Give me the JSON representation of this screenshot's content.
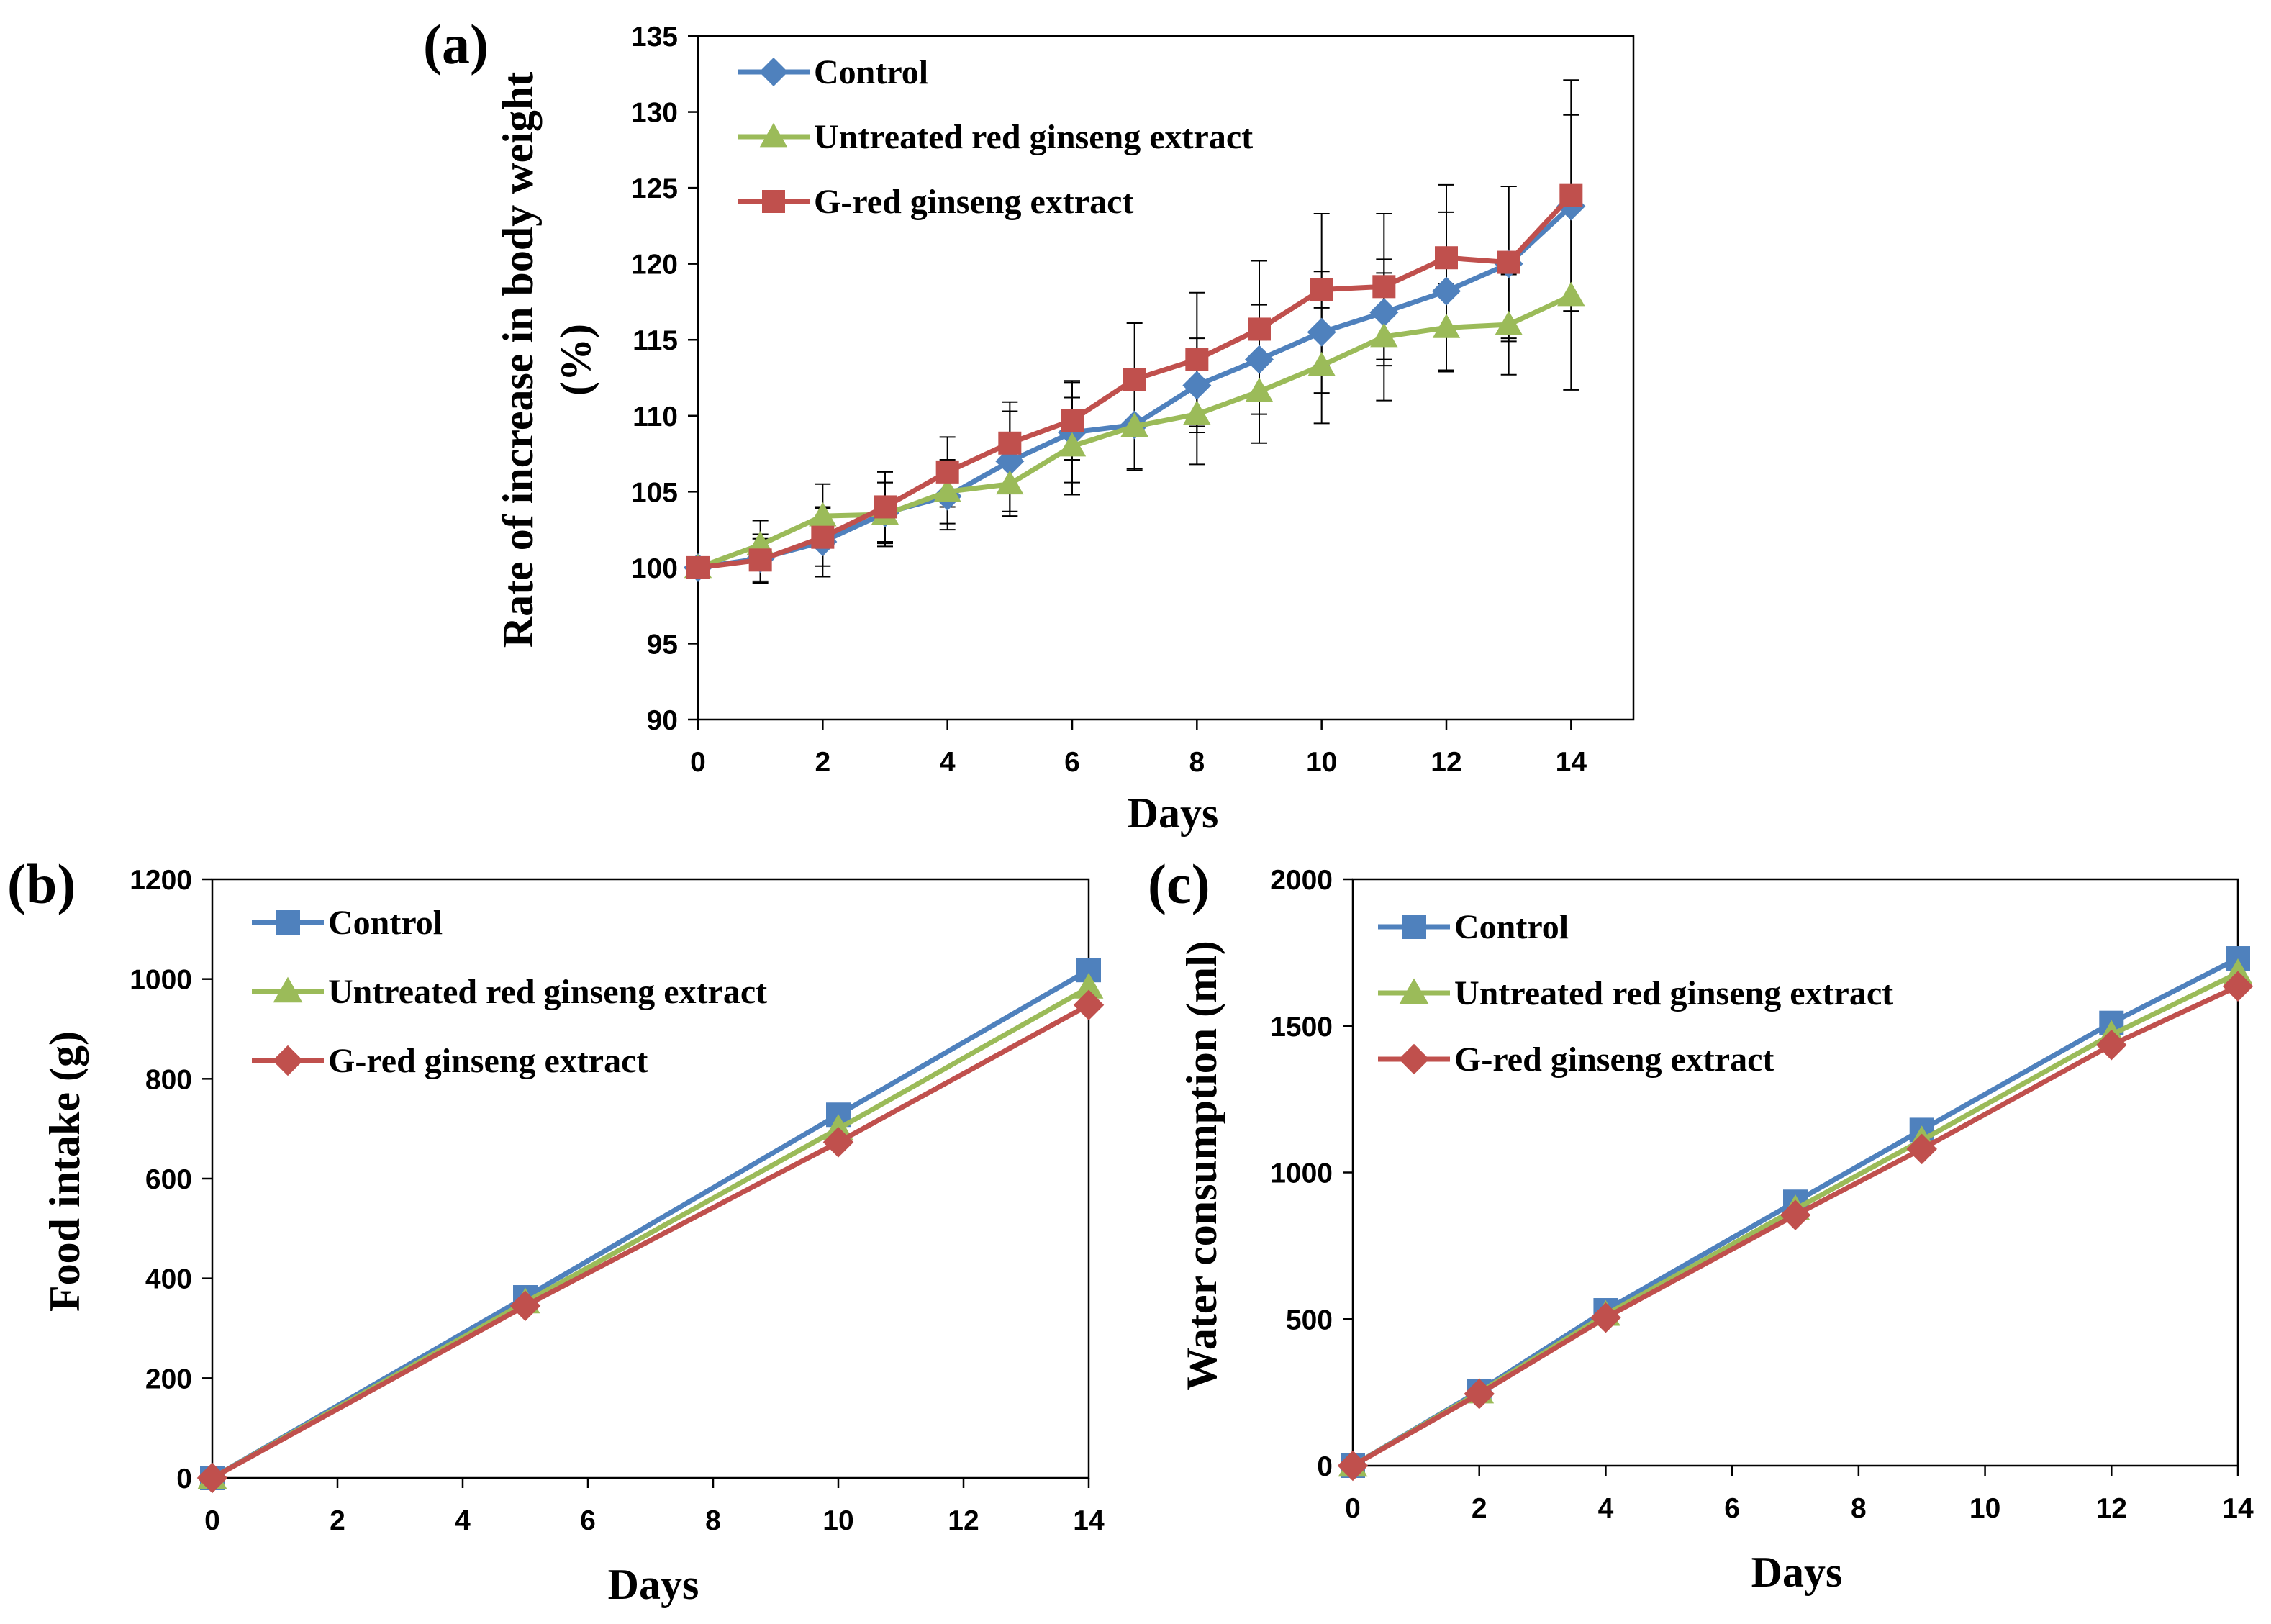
{
  "colors": {
    "control": "#4F81BD",
    "untreated": "#9BBB59",
    "gred": "#C0504D"
  },
  "chart_data": [
    {
      "panel": "(a)",
      "type": "line",
      "xlabel": "Days",
      "ylabel_line1": "Rate of increase in body weight",
      "ylabel_line2": "(%)",
      "xlim": [
        0,
        15
      ],
      "ylim": [
        90,
        135
      ],
      "xticks": [
        0,
        2,
        4,
        6,
        8,
        10,
        12,
        14
      ],
      "yticks": [
        90,
        95,
        100,
        105,
        110,
        115,
        120,
        125,
        130,
        135
      ],
      "grid": false,
      "legend_position": "top-left",
      "x": [
        0,
        1,
        2,
        3,
        4,
        5,
        6,
        7,
        8,
        9,
        10,
        11,
        12,
        13,
        14
      ],
      "series": [
        {
          "name": "Control",
          "marker": "diamond",
          "color": "#4F81BD",
          "values": [
            100,
            100.6,
            101.7,
            103.6,
            104.7,
            107.0,
            108.9,
            109.4,
            112.0,
            113.7,
            115.5,
            116.8,
            118.2,
            120.0,
            123.8
          ],
          "errors": [
            0,
            1.6,
            2.3,
            2.0,
            2.2,
            3.3,
            3.3,
            3.0,
            3.1,
            3.6,
            4.0,
            3.5,
            5.2,
            5.1,
            6.0
          ]
        },
        {
          "name": "Untreated red ginseng extract",
          "marker": "triangle",
          "color": "#9BBB59",
          "values": [
            100,
            101.5,
            103.4,
            103.5,
            105.0,
            105.5,
            108.0,
            109.3,
            110.1,
            111.6,
            113.3,
            115.2,
            115.8,
            116.0,
            117.9
          ],
          "errors": [
            0,
            1.6,
            2.1,
            2.1,
            2.1,
            2.1,
            3.2,
            2.8,
            3.3,
            3.4,
            3.8,
            4.2,
            2.9,
            3.3,
            6.2
          ]
        },
        {
          "name": "G-red ginseng extract",
          "marker": "square",
          "color": "#C0504D",
          "values": [
            100,
            100.5,
            102.0,
            104.0,
            106.3,
            108.2,
            109.7,
            112.4,
            113.7,
            115.7,
            118.3,
            118.5,
            120.4,
            120.1,
            124.5
          ],
          "errors": [
            0,
            1.4,
            1.9,
            2.3,
            2.3,
            2.7,
            2.6,
            3.7,
            4.4,
            4.5,
            5.0,
            4.8,
            4.8,
            5.0,
            7.6
          ]
        }
      ]
    },
    {
      "panel": "(b)",
      "type": "line",
      "xlabel": "Days",
      "ylabel": "Food intake (g)",
      "xlim": [
        0,
        14
      ],
      "ylim": [
        0,
        1200
      ],
      "xticks": [
        0,
        2,
        4,
        6,
        8,
        10,
        12,
        14
      ],
      "yticks": [
        0,
        200,
        400,
        600,
        800,
        1000,
        1200
      ],
      "grid": false,
      "legend_position": "top-left",
      "x": [
        0,
        5,
        10,
        14
      ],
      "series": [
        {
          "name": "Control",
          "marker": "square",
          "color": "#4F81BD",
          "values": [
            0,
            362,
            728,
            1018
          ]
        },
        {
          "name": "Untreated red ginseng extract",
          "marker": "triangle",
          "color": "#9BBB59",
          "values": [
            0,
            352,
            700,
            983
          ]
        },
        {
          "name": "G-red ginseng extract",
          "marker": "diamond",
          "color": "#C0504D",
          "values": [
            0,
            345,
            673,
            948
          ]
        }
      ]
    },
    {
      "panel": "(c)",
      "type": "line",
      "xlabel": "Days",
      "ylabel": "Water consumption (ml)",
      "xlim": [
        0,
        14
      ],
      "ylim": [
        0,
        2000
      ],
      "xticks": [
        0,
        2,
        4,
        6,
        8,
        10,
        12,
        14
      ],
      "yticks": [
        0,
        500,
        1000,
        1500,
        2000
      ],
      "grid": false,
      "legend_position": "top-left",
      "x": [
        0,
        2,
        4,
        7,
        9,
        12,
        14
      ],
      "series": [
        {
          "name": "Control",
          "marker": "square",
          "color": "#4F81BD",
          "values": [
            0,
            255,
            530,
            900,
            1145,
            1510,
            1730
          ]
        },
        {
          "name": "Untreated red ginseng extract",
          "marker": "triangle",
          "color": "#9BBB59",
          "values": [
            0,
            250,
            515,
            875,
            1110,
            1470,
            1680
          ]
        },
        {
          "name": "G-red ginseng extract",
          "marker": "diamond",
          "color": "#C0504D",
          "values": [
            0,
            245,
            505,
            855,
            1080,
            1435,
            1635
          ]
        }
      ]
    }
  ]
}
